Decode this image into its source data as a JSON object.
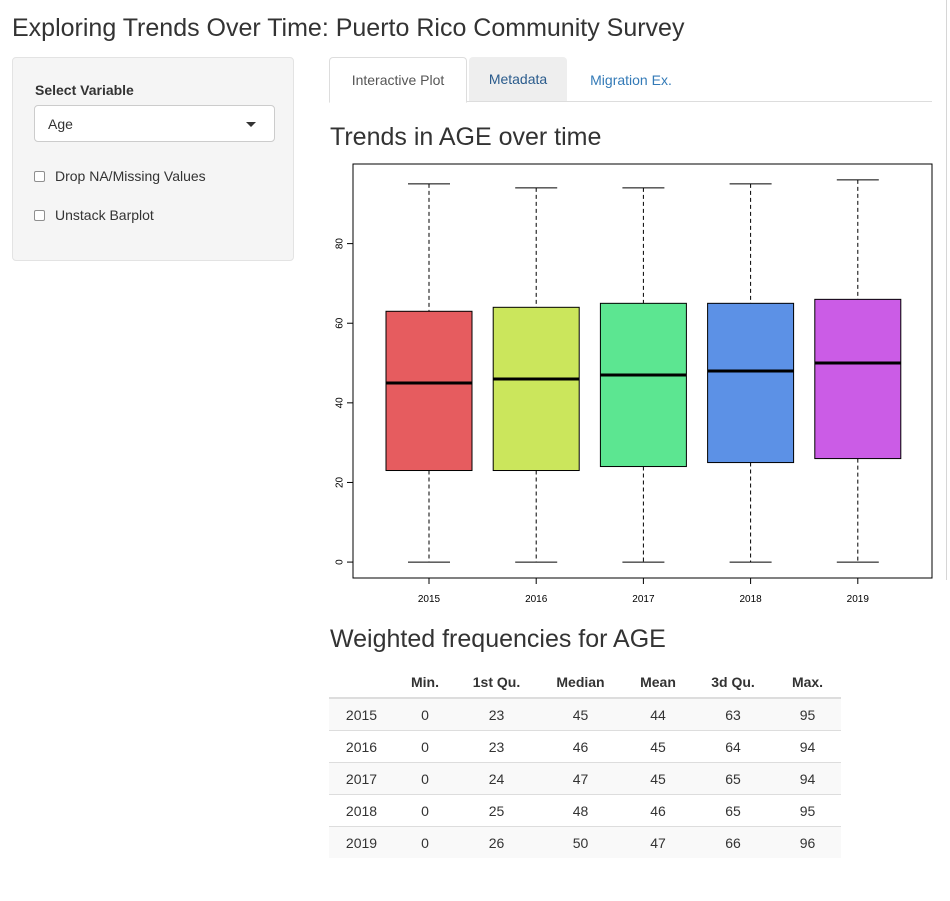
{
  "app": {
    "title": "Exploring Trends Over Time: Puerto Rico Community Survey"
  },
  "sidebar": {
    "select_label": "Select Variable",
    "selected_variable": "Age",
    "checkboxes": [
      {
        "label": "Drop NA/Missing Values",
        "checked": false
      },
      {
        "label": "Unstack Barplot",
        "checked": false
      }
    ]
  },
  "tabs": [
    {
      "label": "Interactive Plot",
      "state": "active"
    },
    {
      "label": "Metadata",
      "state": "hover"
    },
    {
      "label": "Migration Ex.",
      "state": "link"
    }
  ],
  "plot": {
    "title": "Trends in AGE over time"
  },
  "chart_data": {
    "type": "boxplot",
    "categories": [
      "2015",
      "2016",
      "2017",
      "2018",
      "2019"
    ],
    "series": [
      {
        "name": "2015",
        "min": 0,
        "q1": 23,
        "median": 45,
        "q3": 63,
        "max": 95,
        "color": "#e65c5f"
      },
      {
        "name": "2016",
        "min": 0,
        "q1": 23,
        "median": 46,
        "q3": 64,
        "max": 94,
        "color": "#cbe65c"
      },
      {
        "name": "2017",
        "min": 0,
        "q1": 24,
        "median": 47,
        "q3": 65,
        "max": 94,
        "color": "#5ce691"
      },
      {
        "name": "2018",
        "min": 0,
        "q1": 25,
        "median": 48,
        "q3": 65,
        "max": 95,
        "color": "#5c91e6"
      },
      {
        "name": "2019",
        "min": 0,
        "q1": 26,
        "median": 50,
        "q3": 66,
        "max": 96,
        "color": "#cb5ce6"
      }
    ],
    "yticks": [
      0,
      20,
      40,
      60,
      80
    ],
    "ylim": [
      -4,
      100
    ],
    "title": "",
    "xlabel": "",
    "ylabel": "",
    "grid": false
  },
  "table": {
    "title": "Weighted frequencies for AGE",
    "columns": [
      "",
      "Min.",
      "1st Qu.",
      "Median",
      "Mean",
      "3d Qu.",
      "Max."
    ],
    "rows": [
      [
        "2015",
        "0",
        "23",
        "45",
        "44",
        "63",
        "95"
      ],
      [
        "2016",
        "0",
        "23",
        "46",
        "45",
        "64",
        "94"
      ],
      [
        "2017",
        "0",
        "24",
        "47",
        "45",
        "65",
        "94"
      ],
      [
        "2018",
        "0",
        "25",
        "48",
        "46",
        "65",
        "95"
      ],
      [
        "2019",
        "0",
        "26",
        "50",
        "47",
        "66",
        "96"
      ]
    ]
  }
}
